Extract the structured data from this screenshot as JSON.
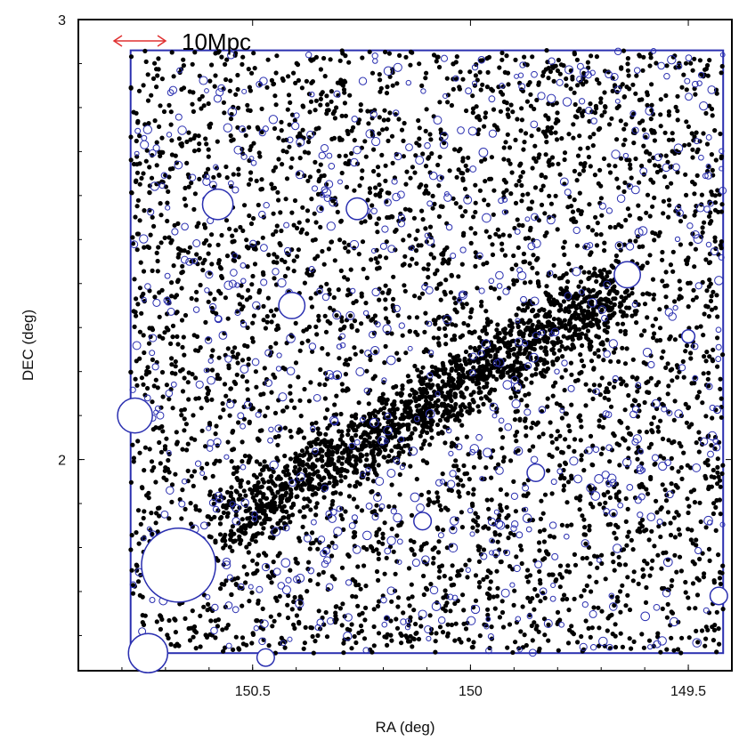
{
  "chart_data": {
    "type": "scatter",
    "xlabel": "RA (deg)",
    "ylabel": "DEC (deg)",
    "xlim": [
      150.9,
      149.4
    ],
    "ylim": [
      1.52,
      3.0
    ],
    "x_ticks": [
      150.5,
      150,
      149.5
    ],
    "x_tick_labels": [
      "150.5",
      "150",
      "149.5"
    ],
    "y_ticks": [
      2,
      3
    ],
    "y_tick_labels": [
      "2",
      "3"
    ],
    "scale_bar_label": "10Mpc",
    "survey_region": {
      "ra": [
        150.78,
        149.42
      ],
      "dec": [
        1.56,
        2.93
      ]
    },
    "colors": {
      "points": "#000000",
      "masks": "#2a2fb0",
      "region": "#2a2fb0",
      "scale_bar": "#e03030",
      "axes": "#000000"
    },
    "series": [
      {
        "marker": "filled-dot",
        "note_count": 5200
      },
      {
        "marker": "open-circle"
      }
    ],
    "mask_circles": [
      {
        "ra": 150.67,
        "dec": 1.76,
        "r": 0.085
      },
      {
        "ra": 150.58,
        "dec": 2.58,
        "r": 0.035
      },
      {
        "ra": 150.41,
        "dec": 2.35,
        "r": 0.03
      },
      {
        "ra": 150.26,
        "dec": 2.57,
        "r": 0.025
      },
      {
        "ra": 149.64,
        "dec": 2.42,
        "r": 0.03
      },
      {
        "ra": 149.85,
        "dec": 1.97,
        "r": 0.02
      },
      {
        "ra": 150.11,
        "dec": 1.86,
        "r": 0.02
      },
      {
        "ra": 150.77,
        "dec": 2.1,
        "r": 0.04
      },
      {
        "ra": 150.74,
        "dec": 1.56,
        "r": 0.045
      },
      {
        "ra": 150.47,
        "dec": 1.55,
        "r": 0.02
      },
      {
        "ra": 149.5,
        "dec": 2.28,
        "r": 0.015
      },
      {
        "ra": 149.43,
        "dec": 1.69,
        "r": 0.02
      }
    ]
  }
}
